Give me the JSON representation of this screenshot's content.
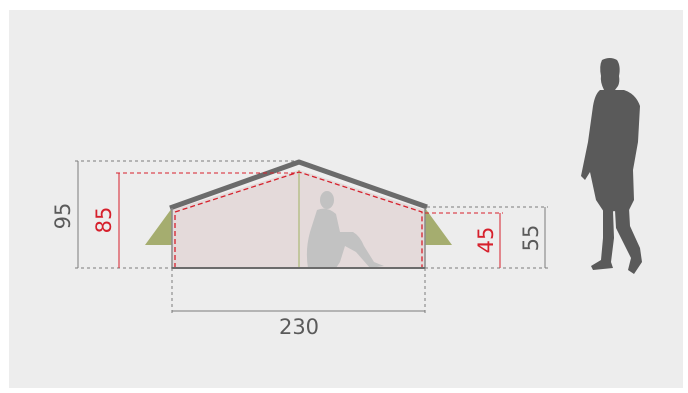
{
  "dimensions": {
    "outer_height": "95",
    "inner_height": "85",
    "inner_side_height": "45",
    "outer_side_height": "55",
    "length": "230"
  },
  "colors": {
    "background": "#ededed",
    "tent_fly": "#6b6b6b",
    "tent_inner": "#e4dada",
    "vestibule": "#a5ad6f",
    "silhouette": "#5a5a5a",
    "person_inside": "#c2c2c2",
    "red_dimension": "#d6202c",
    "gray_dimension": "#5a5a5a"
  }
}
